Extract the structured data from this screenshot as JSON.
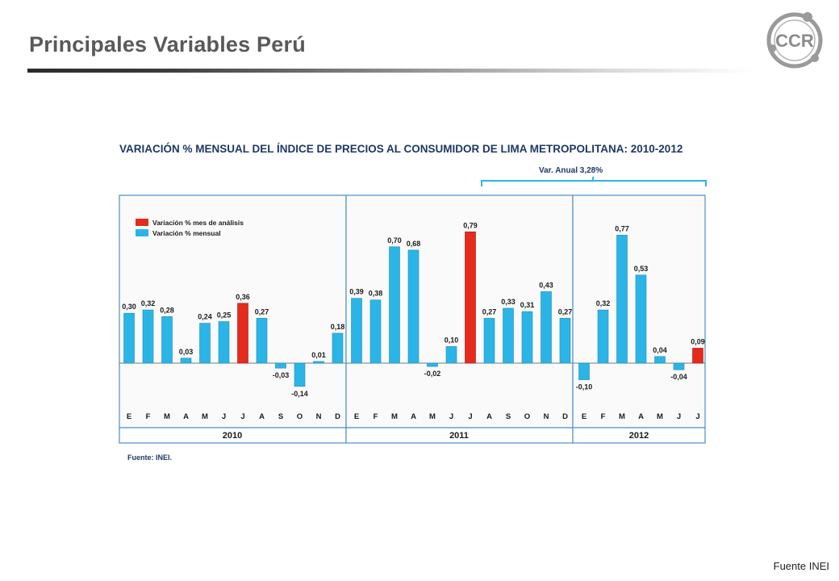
{
  "slide": {
    "title": "Principales Variables Perú",
    "footer": "Fuente INEI",
    "logo_text": "CCR"
  },
  "colors": {
    "bar_monthly": "#2bb5e6",
    "bar_highlight": "#e52a1e",
    "panel_border": "#4a90c8",
    "title_text": "#1f3864"
  },
  "chart_data": {
    "type": "bar",
    "title": "VARIACIÓN % MENSUAL DEL ÍNDICE DE PRECIOS AL CONSUMIDOR DE LIMA METROPOLITANA: 2010-2012",
    "legend": {
      "placement": "top-left",
      "entries": [
        "Variación % mes de análisis",
        "Variación % mensual"
      ]
    },
    "annotation": "Var. Anual  3,28%",
    "source": "Fuente: INEI.",
    "ylim": [
      -0.25,
      0.95
    ],
    "series": [
      {
        "year": "2010",
        "categories": [
          "E",
          "F",
          "M",
          "A",
          "M",
          "J",
          "J",
          "A",
          "S",
          "O",
          "N",
          "D"
        ],
        "values": [
          0.3,
          0.32,
          0.28,
          0.03,
          0.24,
          0.25,
          0.36,
          0.27,
          -0.03,
          -0.14,
          0.01,
          0.18
        ],
        "labels": [
          "0,30",
          "0,32",
          "0,28",
          "0,03",
          "0,24",
          "0,25",
          "0,36",
          "0,27",
          "-0,03",
          "-0,14",
          "0,01",
          "0,18"
        ],
        "highlight": [
          6
        ]
      },
      {
        "year": "2011",
        "categories": [
          "E",
          "F",
          "M",
          "A",
          "M",
          "J",
          "J",
          "A",
          "S",
          "O",
          "N",
          "D"
        ],
        "values": [
          0.39,
          0.38,
          0.7,
          0.68,
          -0.02,
          0.1,
          0.79,
          0.27,
          0.33,
          0.31,
          0.43,
          0.27
        ],
        "labels": [
          "0,39",
          "0,38",
          "0,70",
          "0,68",
          "-0,02",
          "0,10",
          "0,79",
          "0,27",
          "0,33",
          "0,31",
          "0,43",
          "0,27"
        ],
        "highlight": [
          6
        ]
      },
      {
        "year": "2012",
        "categories": [
          "E",
          "F",
          "M",
          "A",
          "M",
          "J",
          "J"
        ],
        "values": [
          -0.1,
          0.32,
          0.77,
          0.53,
          0.04,
          -0.04,
          0.09
        ],
        "labels": [
          "-0,10",
          "0,32",
          "0,77",
          "0,53",
          "0,04",
          "-0,04",
          "0,09"
        ],
        "highlight": [
          6
        ]
      }
    ]
  }
}
